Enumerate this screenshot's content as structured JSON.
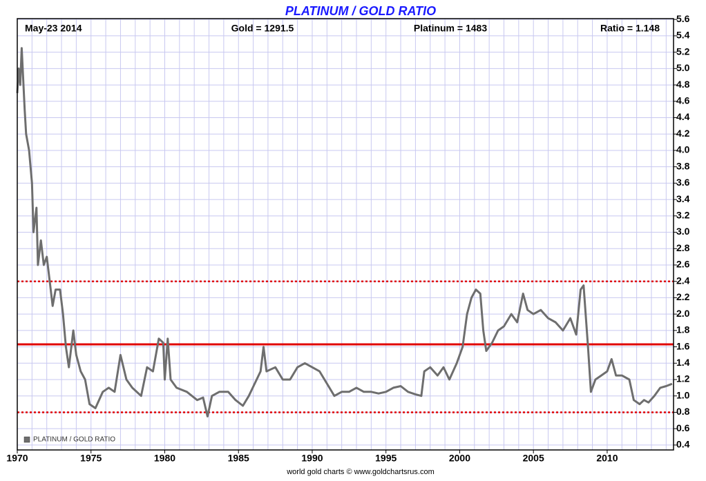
{
  "chart_data": {
    "type": "line",
    "title": "PLATINUM / GOLD RATIO",
    "header": [
      "May-23  2014",
      "Gold = 1291.5",
      "Platinum = 1483",
      "Ratio = 1.148"
    ],
    "footer": "world gold charts © www.goldchartsrus.com",
    "legend_position": "lower left",
    "grid": true,
    "xlim": [
      1970,
      2014.5
    ],
    "ylim": [
      0.34,
      5.61
    ],
    "xticks": [
      1970,
      1975,
      1980,
      1985,
      1990,
      1995,
      2000,
      2005,
      2010
    ],
    "xgrid": [
      1970,
      1971,
      1972,
      1973,
      1974,
      1975,
      1976,
      1977,
      1978,
      1979,
      1980,
      1981,
      1982,
      1983,
      1984,
      1985,
      1986,
      1987,
      1988,
      1989,
      1990,
      1991,
      1992,
      1993,
      1994,
      1995,
      1996,
      1997,
      1998,
      1999,
      2000,
      2001,
      2002,
      2003,
      2004,
      2005,
      2006,
      2007,
      2008,
      2009,
      2010,
      2011,
      2012,
      2013,
      2014
    ],
    "yticks": [
      {
        "value": 0.4,
        "label": "0.4"
      },
      {
        "value": 0.6,
        "label": "0.6"
      },
      {
        "value": 0.8,
        "label": "0.8"
      },
      {
        "value": 1,
        "label": "1.0"
      },
      {
        "value": 1.2,
        "label": "1.2"
      },
      {
        "value": 1.4,
        "label": "1.4"
      },
      {
        "value": 1.6,
        "label": "1.6"
      },
      {
        "value": 1.8,
        "label": "1.8"
      },
      {
        "value": 2,
        "label": "2.0"
      },
      {
        "value": 2.2,
        "label": "2.2"
      },
      {
        "value": 2.4,
        "label": "2.4"
      },
      {
        "value": 2.6,
        "label": "2.6"
      },
      {
        "value": 2.8,
        "label": "2.8"
      },
      {
        "value": 3,
        "label": "3.0"
      },
      {
        "value": 3.2,
        "label": "3.2"
      },
      {
        "value": 3.4,
        "label": "3.4"
      },
      {
        "value": 3.6,
        "label": "3.6"
      },
      {
        "value": 3.8,
        "label": "3.8"
      },
      {
        "value": 4,
        "label": "4.0"
      },
      {
        "value": 4.2,
        "label": "4.2"
      },
      {
        "value": 4.4,
        "label": "4.4"
      },
      {
        "value": 4.6,
        "label": "4.6"
      },
      {
        "value": 4.8,
        "label": "4.8"
      },
      {
        "value": 5,
        "label": "5.0"
      },
      {
        "value": 5.2,
        "label": "5.2"
      },
      {
        "value": 5.4,
        "label": "5.4"
      },
      {
        "value": 5.6,
        "label": "5.6"
      }
    ],
    "reference_lines": [
      {
        "value": 2.4,
        "color": "#e00000",
        "style": "dotted"
      },
      {
        "value": 1.63,
        "color": "#e00000",
        "style": "solid"
      },
      {
        "value": 0.8,
        "color": "#e00000",
        "style": "dotted"
      }
    ],
    "x": [
      1970.0,
      1970.1,
      1970.2,
      1970.3,
      1970.5,
      1970.6,
      1970.8,
      1971.0,
      1971.1,
      1971.3,
      1971.4,
      1971.6,
      1971.8,
      1972.0,
      1972.2,
      1972.4,
      1972.6,
      1972.9,
      1973.1,
      1973.3,
      1973.5,
      1973.8,
      1974.0,
      1974.3,
      1974.6,
      1974.9,
      1975.3,
      1975.8,
      1976.2,
      1976.6,
      1977.0,
      1977.4,
      1977.8,
      1978.4,
      1978.8,
      1979.2,
      1979.6,
      1979.9,
      1980.0,
      1980.2,
      1980.4,
      1980.8,
      1981.5,
      1982.2,
      1982.6,
      1982.9,
      1983.2,
      1983.7,
      1984.3,
      1984.8,
      1985.3,
      1985.7,
      1986.1,
      1986.5,
      1986.7,
      1986.9,
      1987.5,
      1988.0,
      1988.5,
      1989.0,
      1989.5,
      1990.0,
      1990.5,
      1991.0,
      1991.5,
      1992.0,
      1992.5,
      1993.0,
      1993.5,
      1994.0,
      1994.5,
      1995.0,
      1995.5,
      1996.0,
      1996.5,
      1997.0,
      1997.4,
      1997.6,
      1998.0,
      1998.5,
      1998.9,
      1999.3,
      1999.8,
      2000.2,
      2000.5,
      2000.8,
      2001.1,
      2001.4,
      2001.6,
      2001.8,
      2002.2,
      2002.6,
      2003.0,
      2003.5,
      2003.9,
      2004.3,
      2004.6,
      2005.0,
      2005.5,
      2006.0,
      2006.5,
      2007.0,
      2007.5,
      2007.9,
      2008.2,
      2008.4,
      2008.7,
      2008.9,
      2009.2,
      2009.6,
      2010.0,
      2010.3,
      2010.6,
      2011.0,
      2011.5,
      2011.8,
      2012.2,
      2012.5,
      2012.8,
      2013.2,
      2013.6,
      2014.0,
      2014.4
    ],
    "series": [
      {
        "name": "PLATINUM / GOLD RATIO",
        "color": "#6e6e6e",
        "values": [
          4.7,
          5.0,
          4.8,
          5.25,
          4.5,
          4.2,
          4.0,
          3.6,
          3.0,
          3.3,
          2.6,
          2.9,
          2.6,
          2.7,
          2.4,
          2.1,
          2.3,
          2.3,
          2.0,
          1.6,
          1.35,
          1.8,
          1.5,
          1.3,
          1.2,
          0.9,
          0.85,
          1.05,
          1.1,
          1.05,
          1.5,
          1.2,
          1.1,
          1.0,
          1.35,
          1.3,
          1.7,
          1.65,
          1.2,
          1.7,
          1.2,
          1.1,
          1.05,
          0.95,
          0.98,
          0.75,
          1.0,
          1.05,
          1.05,
          0.95,
          0.88,
          1.0,
          1.15,
          1.3,
          1.6,
          1.3,
          1.35,
          1.2,
          1.2,
          1.35,
          1.4,
          1.35,
          1.3,
          1.15,
          1.0,
          1.05,
          1.05,
          1.1,
          1.05,
          1.05,
          1.03,
          1.05,
          1.1,
          1.12,
          1.05,
          1.02,
          1.0,
          1.3,
          1.35,
          1.25,
          1.35,
          1.2,
          1.4,
          1.6,
          2.0,
          2.2,
          2.3,
          2.25,
          1.8,
          1.55,
          1.65,
          1.8,
          1.85,
          2.0,
          1.9,
          2.25,
          2.05,
          2.0,
          2.05,
          1.95,
          1.9,
          1.8,
          1.95,
          1.75,
          2.3,
          2.35,
          1.6,
          1.05,
          1.2,
          1.25,
          1.3,
          1.45,
          1.25,
          1.25,
          1.2,
          0.95,
          0.9,
          0.95,
          0.92,
          1.0,
          1.1,
          1.12,
          1.148
        ]
      }
    ]
  }
}
